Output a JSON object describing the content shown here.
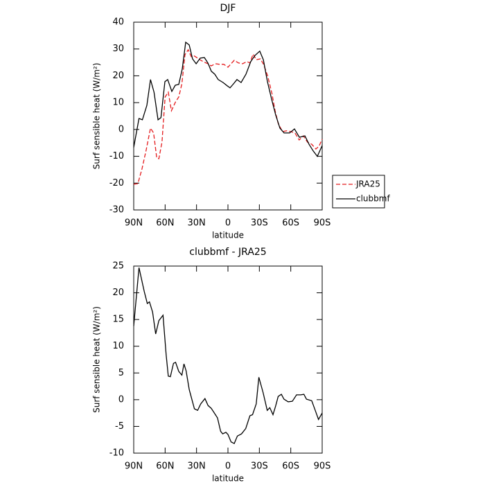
{
  "chart_data": [
    {
      "type": "line",
      "title": "DJF",
      "xlabel": "latitude",
      "ylabel": "Surf sensible heat (W/m²)",
      "xlim": [
        90,
        -90
      ],
      "xticks": [
        {
          "value": 90,
          "label": "90N"
        },
        {
          "value": 60,
          "label": "60N"
        },
        {
          "value": 30,
          "label": "30N"
        },
        0,
        {
          "value": -30,
          "label": "30S"
        },
        {
          "value": -60,
          "label": "60S"
        },
        {
          "value": -90,
          "label": "90S"
        }
      ],
      "ylim": [
        -30,
        40
      ],
      "yticks": [
        -30,
        -20,
        -10,
        0,
        10,
        20,
        30,
        40
      ],
      "legend": "outside-right",
      "series": [
        {
          "name": "JRA25",
          "color": "#e41a1c",
          "line_style": "dashed",
          "x": [
            90,
            86,
            82,
            78,
            74,
            71,
            68,
            66,
            63,
            60,
            57,
            54,
            50,
            47,
            44,
            41,
            38,
            35,
            32,
            29,
            26,
            22,
            19,
            16,
            12,
            8,
            4,
            0,
            -3,
            -6,
            -10,
            -14,
            -18,
            -21,
            -24,
            -27,
            -31,
            -34,
            -38,
            -42,
            -45,
            -48,
            -52,
            -56,
            -60,
            -64,
            -68,
            -72,
            -76,
            -80,
            -84,
            -87,
            -90
          ],
          "values": [
            -20.4,
            -20.2,
            -14.5,
            -7.5,
            0.5,
            -1.3,
            -10.6,
            -10.9,
            -4.7,
            12.1,
            13.9,
            7,
            10.3,
            12.1,
            17,
            27.9,
            29.7,
            27.1,
            27.4,
            26.6,
            25.8,
            25,
            24.5,
            23.7,
            24.5,
            24.3,
            24.3,
            23.2,
            24.5,
            25.8,
            24.8,
            24.5,
            25.3,
            24.8,
            28.1,
            26,
            26.3,
            24.3,
            19.9,
            13.4,
            7,
            2.3,
            -0.8,
            -0.5,
            -0.8,
            -1.3,
            -3.9,
            -2.4,
            -4.7,
            -5.5,
            -7.3,
            -6.2,
            -3.6
          ]
        },
        {
          "name": "clubbmf",
          "color": "#000000",
          "line_style": "solid",
          "x": [
            90,
            85,
            81.7,
            77.4,
            74,
            70.6,
            66.8,
            64,
            60.2,
            57.6,
            53.6,
            50.3,
            47,
            43.7,
            40.4,
            37,
            33.8,
            30.4,
            26.5,
            22.5,
            19.2,
            15.9,
            12.6,
            9.3,
            4.6,
            0.7,
            -2,
            -5.3,
            -8.6,
            -12.6,
            -17.2,
            -21.8,
            -25.8,
            -30.4,
            -33.8,
            -37.7,
            -41.7,
            -45.6,
            -49.6,
            -53.6,
            -58.9,
            -63.5,
            -68.2,
            -73.5,
            -77.4,
            -81.4,
            -85.4,
            -90
          ],
          "values": [
            -6.7,
            4.1,
            3.6,
            9,
            18.6,
            13.9,
            3.6,
            4.4,
            17.8,
            18.6,
            14.2,
            16.5,
            16.8,
            22.5,
            32.5,
            31.5,
            26.3,
            24.5,
            26.6,
            26.8,
            24.8,
            21.7,
            20.6,
            18.6,
            17.5,
            16.3,
            15.5,
            17,
            18.6,
            17.5,
            20.6,
            25.3,
            27.6,
            29.2,
            26,
            17.8,
            11.3,
            5.4,
            0.5,
            -1.3,
            -1.3,
            0.2,
            -2.9,
            -2.4,
            -5.5,
            -8,
            -10,
            -6
          ]
        }
      ]
    },
    {
      "type": "line",
      "title": "clubbmf - JRA25",
      "xlabel": "latitude",
      "ylabel": "Surf sensible heat (W/m²)",
      "xlim": [
        90,
        -90
      ],
      "xticks": [
        {
          "value": 90,
          "label": "90N"
        },
        {
          "value": 60,
          "label": "60N"
        },
        {
          "value": 30,
          "label": "30N"
        },
        0,
        {
          "value": -30,
          "label": "30S"
        },
        {
          "value": -60,
          "label": "60S"
        },
        {
          "value": -90,
          "label": "90S"
        }
      ],
      "ylim": [
        -10,
        25
      ],
      "yticks": [
        -10,
        -5,
        0,
        5,
        10,
        15,
        20,
        25
      ],
      "series": [
        {
          "color": "#000000",
          "line_style": "solid",
          "x": [
            90,
            85,
            80,
            77,
            75,
            72,
            69,
            66,
            62,
            59,
            57,
            55,
            52,
            50,
            47,
            44,
            42,
            40,
            37,
            32,
            29,
            26,
            22,
            19,
            16,
            12,
            10,
            7,
            5,
            2,
            0,
            -3,
            -6,
            -9,
            -13,
            -17,
            -21,
            -23.5,
            -27,
            -29.5,
            -33.5,
            -37.5,
            -40,
            -43,
            -45.5,
            -48,
            -51,
            -53.5,
            -57.5,
            -61.5,
            -65.5,
            -69.5,
            -72.5,
            -75,
            -80,
            -83,
            -86.5,
            -90
          ],
          "values": [
            13.8,
            24.7,
            20.3,
            18,
            18.3,
            16.4,
            12.3,
            14.8,
            15.8,
            8.4,
            4.4,
            4.3,
            6.8,
            7,
            5.3,
            4.6,
            6.7,
            5.4,
            1.9,
            -1.7,
            -2,
            -0.8,
            0.2,
            -1.1,
            -1.6,
            -2.8,
            -3.4,
            -5.9,
            -6.4,
            -6.1,
            -6.5,
            -7.9,
            -8.2,
            -6.8,
            -6.4,
            -5.4,
            -3,
            -2.8,
            -0.8,
            4.2,
            1.4,
            -2,
            -1.5,
            -2.8,
            -1.2,
            0.6,
            1,
            0.1,
            -0.4,
            -0.3,
            0.9,
            0.9,
            1,
            0.1,
            -0.2,
            -1.8,
            -3.7,
            -2.5
          ]
        }
      ]
    }
  ]
}
